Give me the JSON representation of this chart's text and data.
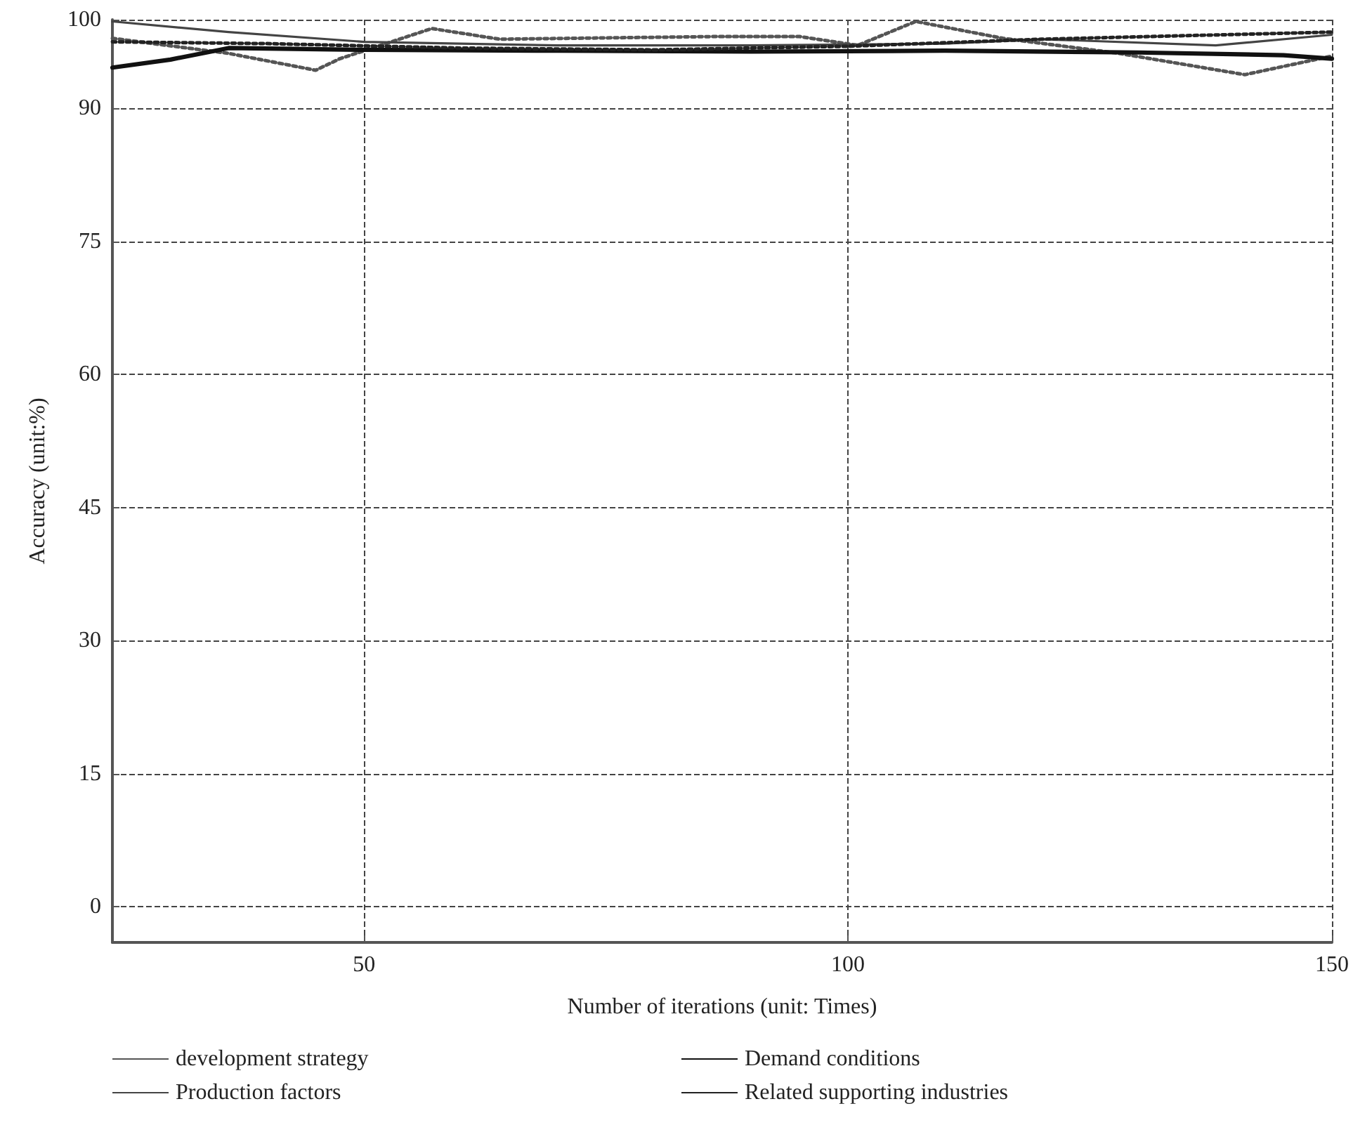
{
  "chart_data": {
    "type": "line",
    "xlabel": "Number of iterations (unit: Times)",
    "ylabel": "Accuracy (unit:%)",
    "xlim": [
      24,
      150
    ],
    "xticks": [
      50,
      100,
      150
    ],
    "ylim": [
      -4,
      100
    ],
    "yticks": [
      0,
      15,
      30,
      45,
      60,
      75,
      90,
      100
    ],
    "grid": true,
    "legend": "bottom",
    "marker": "none",
    "series": [
      {
        "name": "development strategy",
        "color": "#555555",
        "line_style": "dotted",
        "x": [
          24,
          36,
          45,
          47.5,
          57,
          64,
          86.5,
          95,
          101,
          107,
          116,
          128,
          141,
          150
        ],
        "values": [
          97.9,
          96.2,
          94.3,
          95.6,
          99.0,
          97.8,
          98.1,
          98.1,
          97.1,
          99.8,
          97.9,
          96.2,
          93.8,
          95.9
        ]
      },
      {
        "name": "Demand conditions",
        "color": "#111111",
        "line_style": "solid",
        "x": [
          24,
          30,
          36,
          50,
          70,
          90,
          110,
          130,
          145,
          150
        ],
        "values": [
          94.6,
          95.5,
          96.8,
          96.6,
          96.5,
          96.4,
          96.5,
          96.3,
          96.0,
          95.6
        ]
      },
      {
        "name": "Production factors",
        "color": "#444444",
        "line_style": "solid",
        "x": [
          24,
          36,
          50,
          70,
          90,
          110,
          120,
          138,
          150
        ],
        "values": [
          99.8,
          98.6,
          97.5,
          97.1,
          97.1,
          97.3,
          97.8,
          97.1,
          98.3
        ]
      },
      {
        "name": "Related supporting industries",
        "color": "#222222",
        "line_style": "dotted",
        "x": [
          24,
          40,
          60,
          80,
          100,
          120,
          135,
          150
        ],
        "values": [
          97.5,
          97.3,
          96.8,
          96.6,
          97.0,
          97.8,
          98.2,
          98.6
        ]
      }
    ]
  }
}
